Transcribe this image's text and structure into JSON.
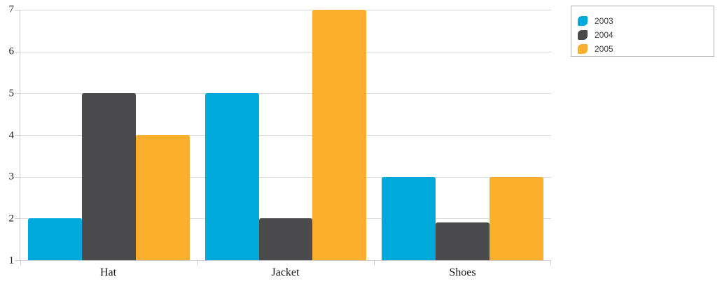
{
  "chart_data": {
    "type": "bar",
    "title": "",
    "categories": [
      "Hat",
      "Jacket",
      "Shoes"
    ],
    "series": [
      {
        "name": "2003",
        "color": "#00A9DC",
        "values": [
          2,
          5,
          3
        ]
      },
      {
        "name": "2004",
        "color": "#4B4B4D",
        "values": [
          5,
          2,
          1.9
        ]
      },
      {
        "name": "2005",
        "color": "#FBAF2D",
        "values": [
          4,
          7,
          3
        ]
      }
    ],
    "ylim": [
      1,
      7
    ],
    "yticks": [
      1,
      2,
      3,
      4,
      5,
      6,
      7
    ],
    "xlabel": "",
    "ylabel": "",
    "grid": true,
    "legend_position": "top-right"
  },
  "colors": {
    "gridline": "#D9D9D9",
    "axis": "#CBCBCB",
    "legend_border": "#AEAEAE",
    "text": "#1A1A1A"
  }
}
